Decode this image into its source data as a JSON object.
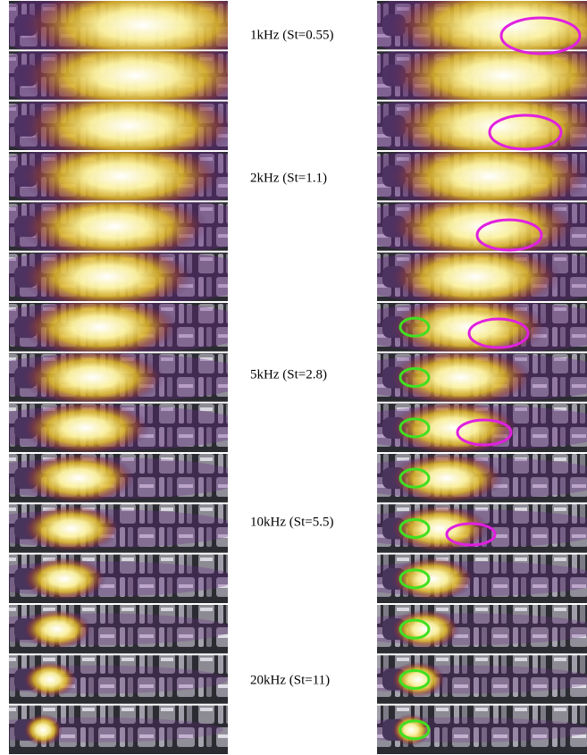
{
  "labels": [
    "1kHz (St=0.55)",
    "2kHz (St=1.1)",
    "5kHz (St=2.8)",
    "10kHz (St=5.5)",
    "20kHz (St=11)"
  ]
}
